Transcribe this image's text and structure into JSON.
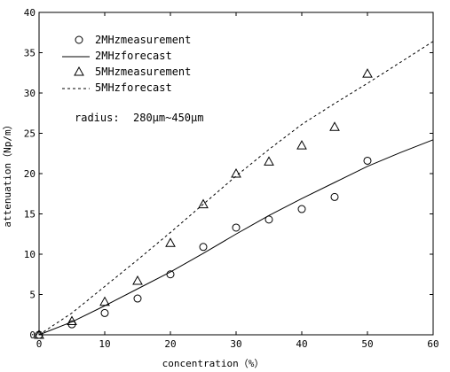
{
  "chart_data": {
    "type": "line",
    "title": "",
    "xlabel": "concentration（%）",
    "ylabel": "attenuation（Np/m）",
    "xlim": [
      0,
      60
    ],
    "ylim": [
      0,
      40
    ],
    "xticks": [
      0,
      10,
      20,
      30,
      40,
      50,
      60
    ],
    "yticks": [
      0,
      5,
      10,
      15,
      20,
      25,
      30,
      35,
      40
    ],
    "grid": false,
    "legend_position": "top-left",
    "series": [
      {
        "name": "2MHzmeasurement",
        "kind": "scatter",
        "marker": "circle",
        "x": [
          0,
          5,
          10,
          15,
          20,
          25,
          30,
          35,
          40,
          45,
          50
        ],
        "y": [
          0,
          1.3,
          2.7,
          4.5,
          7.5,
          10.9,
          13.3,
          14.3,
          15.6,
          17.1,
          21.6
        ]
      },
      {
        "name": "2MHzforecast",
        "kind": "line",
        "dash": "solid",
        "x": [
          0,
          5,
          10,
          15,
          20,
          25,
          30,
          35,
          40,
          45,
          50,
          55,
          60
        ],
        "y": [
          0,
          1.6,
          3.6,
          5.7,
          7.8,
          10.1,
          12.5,
          14.8,
          16.9,
          18.9,
          20.9,
          22.6,
          24.2
        ]
      },
      {
        "name": "5MHzmeasurement",
        "kind": "scatter",
        "marker": "triangle",
        "x": [
          0,
          5,
          10,
          15,
          20,
          25,
          30,
          35,
          40,
          45,
          50
        ],
        "y": [
          0,
          1.7,
          4.1,
          6.7,
          11.4,
          16.2,
          20.0,
          21.5,
          23.5,
          25.8,
          32.4
        ]
      },
      {
        "name": "5MHzforecast",
        "kind": "line",
        "dash": "dashed",
        "x": [
          0,
          5,
          10,
          15,
          20,
          25,
          30,
          35,
          40,
          45,
          50,
          55,
          60
        ],
        "y": [
          0,
          2.7,
          6.0,
          9.3,
          12.7,
          16.2,
          19.7,
          23.0,
          26.1,
          28.7,
          31.2,
          33.8,
          36.4
        ]
      }
    ],
    "annotations": [
      {
        "label": "radius:",
        "value": "280μm~450μm"
      }
    ]
  }
}
